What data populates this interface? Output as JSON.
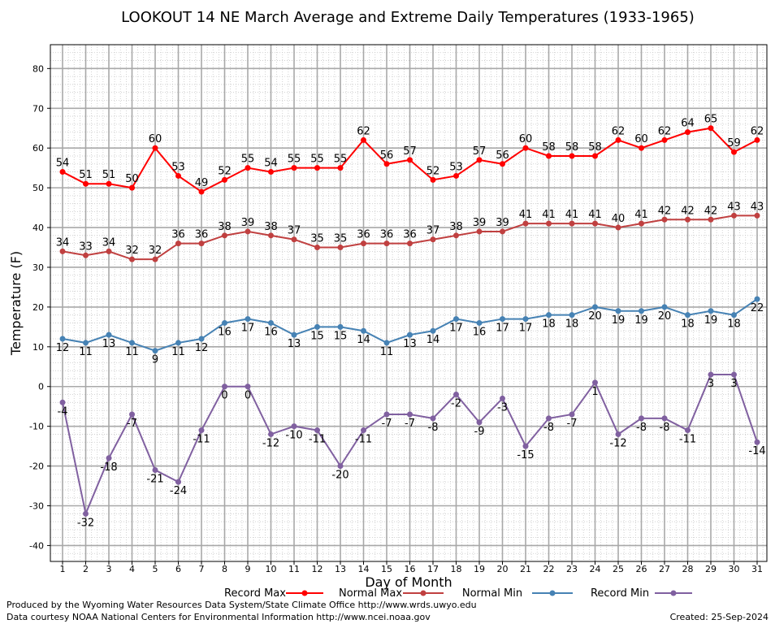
{
  "chart_data": {
    "type": "line",
    "title": "LOOKOUT 14 NE March Average and Extreme Daily Temperatures (1933-1965)",
    "xlabel": "Day of Month",
    "ylabel": "Temperature (F)",
    "ylim": [
      -44,
      86
    ],
    "yticks": [
      -40,
      -30,
      -20,
      -10,
      0,
      10,
      20,
      30,
      40,
      50,
      60,
      70,
      80
    ],
    "grid": true,
    "legend_position": "bottom",
    "x": [
      1,
      2,
      3,
      4,
      5,
      6,
      7,
      8,
      9,
      10,
      11,
      12,
      13,
      14,
      15,
      16,
      17,
      18,
      19,
      20,
      21,
      22,
      23,
      24,
      25,
      26,
      27,
      28,
      29,
      30,
      31
    ],
    "series": [
      {
        "name": "Record Max",
        "color": "#ff0000",
        "values": [
          54,
          51,
          51,
          50,
          60,
          53,
          49,
          52,
          55,
          54,
          55,
          55,
          55,
          62,
          56,
          57,
          52,
          53,
          57,
          56,
          60,
          58,
          58,
          58,
          62,
          60,
          62,
          64,
          65,
          59,
          62
        ]
      },
      {
        "name": "Normal Max",
        "color": "#c04040",
        "values": [
          34,
          33,
          34,
          32,
          32,
          36,
          36,
          38,
          39,
          38,
          37,
          35,
          35,
          36,
          36,
          36,
          37,
          38,
          39,
          39,
          41,
          41,
          41,
          41,
          40,
          41,
          42,
          42,
          42,
          43,
          43
        ]
      },
      {
        "name": "Normal Min",
        "color": "#4682b4",
        "values": [
          12,
          11,
          13,
          11,
          9,
          11,
          12,
          16,
          17,
          16,
          13,
          15,
          15,
          14,
          11,
          13,
          14,
          17,
          16,
          17,
          17,
          18,
          18,
          20,
          19,
          19,
          20,
          18,
          19,
          18,
          22
        ]
      },
      {
        "name": "Record Min",
        "color": "#8060a0",
        "values": [
          -4,
          -32,
          -18,
          -7,
          -21,
          -24,
          -11,
          0,
          0,
          -12,
          -10,
          -11,
          -20,
          -11,
          -7,
          -7,
          -8,
          -2,
          -9,
          -3,
          -15,
          -8,
          -7,
          1,
          -12,
          -8,
          -8,
          -11,
          3,
          3,
          -14
        ]
      }
    ]
  },
  "footer": {
    "produced_by": "Produced by the Wyoming Water Resources Data System/State Climate Office http://www.wrds.uwyo.edu",
    "data_courtesy": "Data courtesy NOAA National Centers for Environmental Information http://www.ncei.noaa.gov",
    "created": "Created: 25-Sep-2024"
  }
}
